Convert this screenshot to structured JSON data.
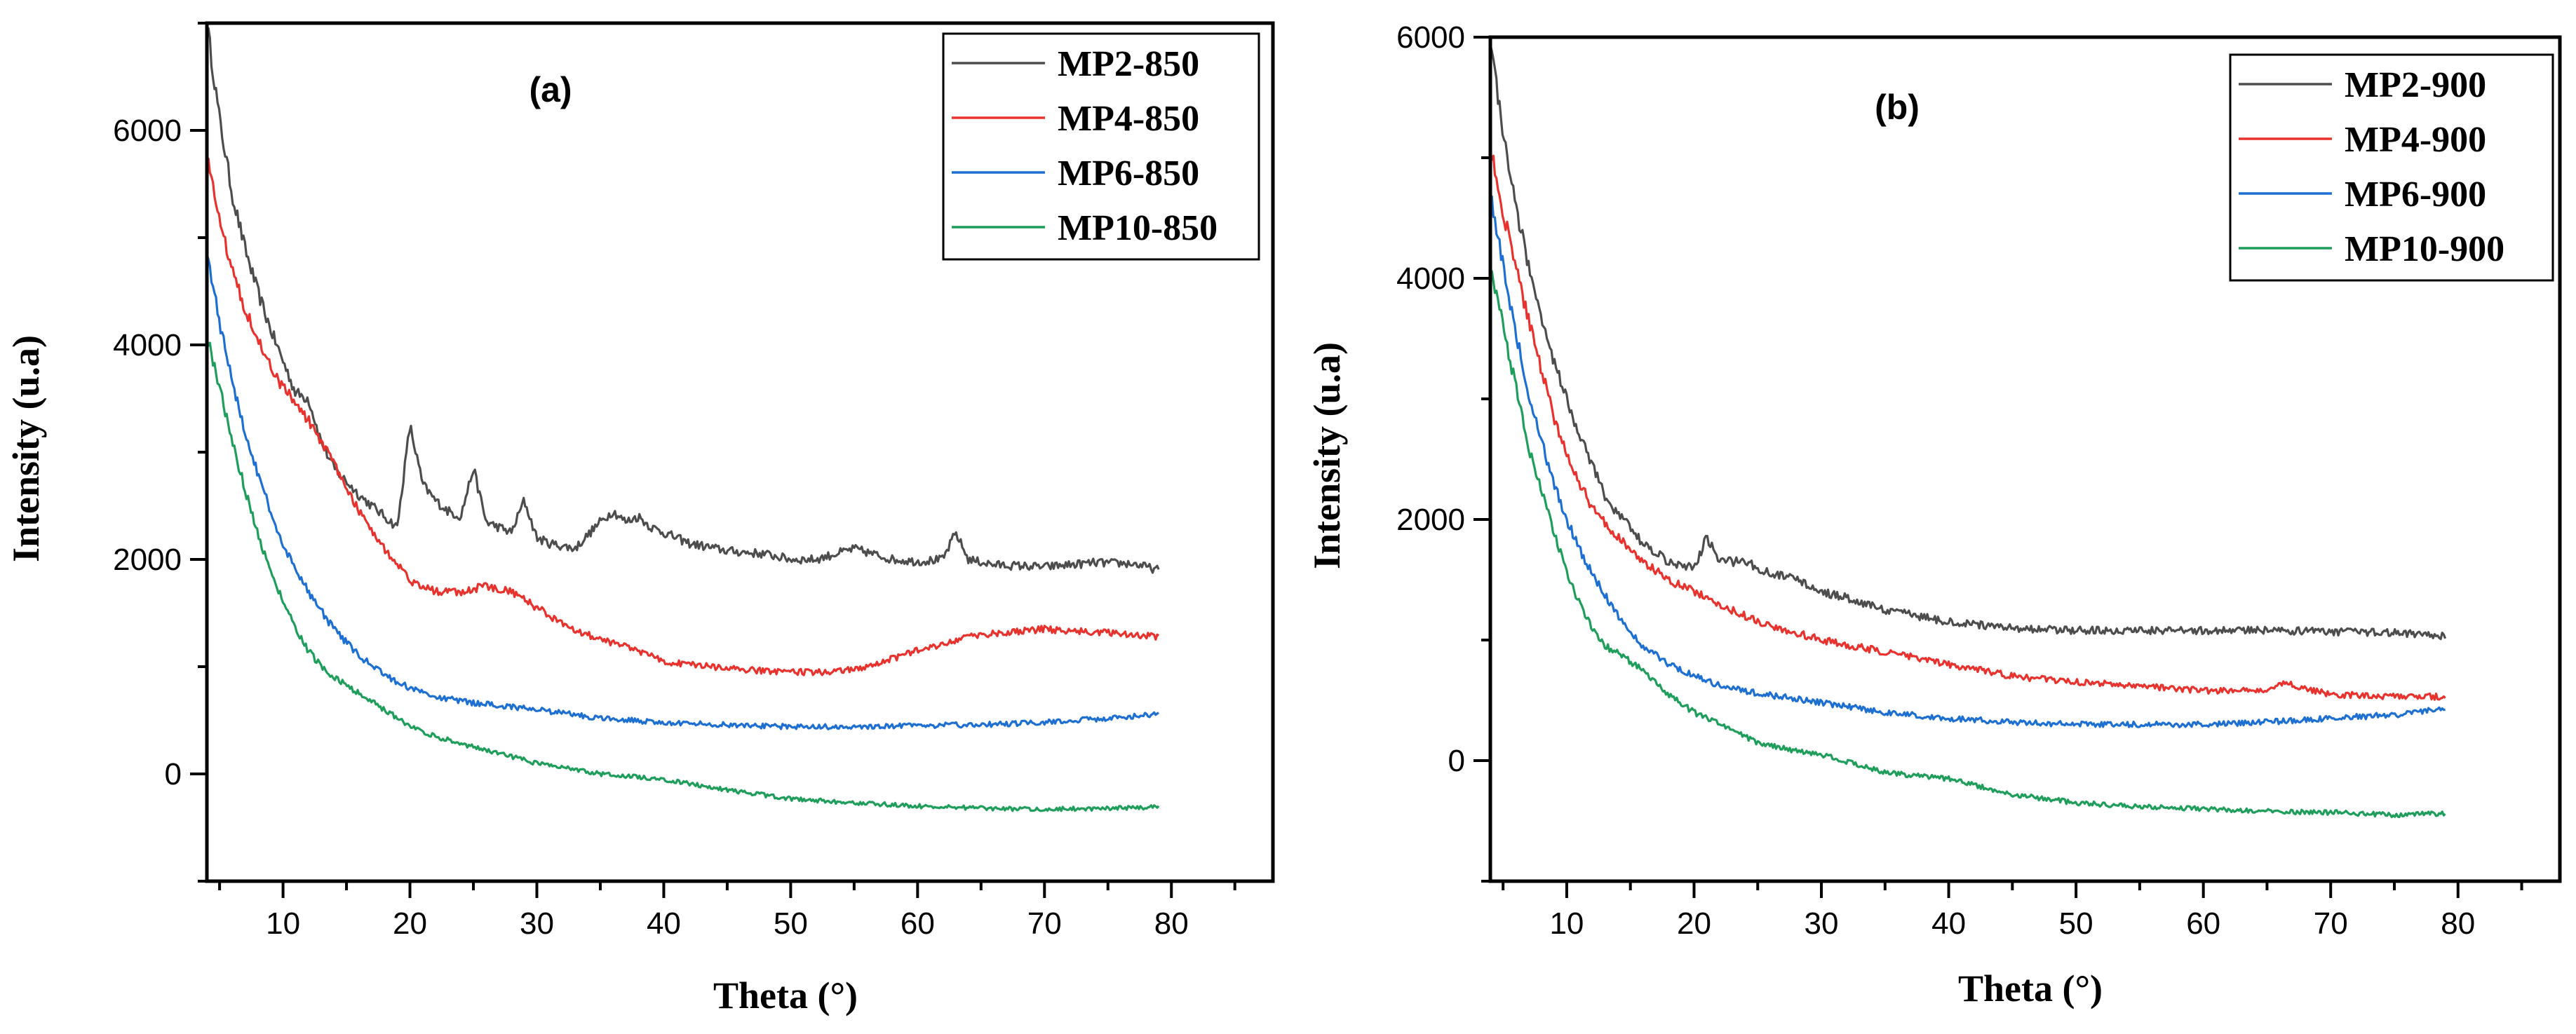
{
  "chart_data": [
    {
      "type": "line",
      "panel_label": "(a)",
      "xlabel": "Theta (°)",
      "ylabel": "Intensity (u.a)",
      "xlim": [
        4,
        88
      ],
      "ylim": [
        -1000,
        7000
      ],
      "xticks": [
        10,
        20,
        30,
        40,
        50,
        60,
        70,
        80
      ],
      "yticks": [
        0,
        2000,
        4000,
        6000
      ],
      "legend": "top-right",
      "series": [
        {
          "name": "MP2-850",
          "color": "#4d4d4d",
          "x": [
            4,
            5,
            6,
            7,
            8,
            9,
            10,
            11,
            12,
            13,
            14,
            16,
            18,
            19,
            20,
            21,
            22,
            23,
            24,
            25,
            26,
            27,
            28,
            29,
            30,
            31,
            33,
            35,
            36,
            37,
            38,
            39,
            40,
            42,
            45,
            48,
            50,
            52,
            55,
            58,
            60,
            62,
            63,
            64,
            66,
            70,
            74,
            77,
            79
          ],
          "y": [
            7000,
            6100,
            5400,
            4900,
            4500,
            4150,
            3850,
            3550,
            3500,
            3100,
            2850,
            2600,
            2400,
            2300,
            3250,
            2700,
            2550,
            2450,
            2400,
            2850,
            2350,
            2300,
            2250,
            2550,
            2200,
            2150,
            2100,
            2350,
            2450,
            2350,
            2400,
            2300,
            2250,
            2150,
            2080,
            2050,
            2000,
            2000,
            2100,
            2000,
            1980,
            2000,
            2250,
            2000,
            1950,
            1930,
            1970,
            1960,
            1900
          ]
        },
        {
          "name": "MP4-850",
          "color": "#e8322d",
          "x": [
            4,
            5,
            6,
            7,
            8,
            9,
            10,
            11,
            12,
            14,
            16,
            18,
            20,
            22,
            24,
            26,
            28,
            30,
            32,
            35,
            38,
            40,
            45,
            50,
            53,
            56,
            60,
            65,
            70,
            75,
            79
          ],
          "y": [
            5800,
            5150,
            4700,
            4350,
            4050,
            3800,
            3600,
            3450,
            3300,
            2900,
            2450,
            2100,
            1800,
            1700,
            1700,
            1750,
            1700,
            1550,
            1400,
            1250,
            1150,
            1050,
            980,
            950,
            950,
            1000,
            1150,
            1300,
            1350,
            1320,
            1280
          ]
        },
        {
          "name": "MP6-850",
          "color": "#1d6fd1",
          "x": [
            4,
            5,
            6,
            7,
            8,
            9,
            10,
            11,
            12,
            14,
            16,
            18,
            20,
            22,
            25,
            30,
            35,
            40,
            45,
            50,
            55,
            60,
            65,
            70,
            75,
            79
          ],
          "y": [
            4900,
            4200,
            3650,
            3200,
            2800,
            2450,
            2150,
            1900,
            1700,
            1350,
            1100,
            920,
            800,
            720,
            660,
            600,
            520,
            480,
            460,
            440,
            440,
            450,
            460,
            480,
            520,
            560
          ]
        },
        {
          "name": "MP10-850",
          "color": "#1e9e5a",
          "x": [
            4,
            5,
            6,
            7,
            8,
            9,
            10,
            11,
            12,
            13,
            14,
            16,
            18,
            20,
            22,
            25,
            30,
            35,
            40,
            45,
            50,
            55,
            60,
            65,
            70,
            75,
            79
          ],
          "y": [
            4100,
            3600,
            3100,
            2650,
            2250,
            1900,
            1600,
            1350,
            1150,
            1000,
            900,
            750,
            600,
            450,
            350,
            250,
            100,
            0,
            -50,
            -150,
            -230,
            -270,
            -300,
            -320,
            -330,
            -320,
            -310
          ]
        }
      ]
    },
    {
      "type": "line",
      "panel_label": "(b)",
      "xlabel": "Theta (°)",
      "ylabel": "Intensity (u.a)",
      "xlim": [
        4,
        88
      ],
      "ylim": [
        -1000,
        6000
      ],
      "xticks": [
        10,
        20,
        30,
        40,
        50,
        60,
        70,
        80
      ],
      "yticks": [
        0,
        2000,
        4000,
        6000
      ],
      "legend": "top-right",
      "series": [
        {
          "name": "MP2-900",
          "color": "#4d4d4d",
          "x": [
            4,
            5,
            6,
            7,
            8,
            9,
            10,
            11,
            12,
            13,
            14,
            16,
            18,
            20,
            21,
            22,
            24,
            26,
            28,
            30,
            32,
            35,
            40,
            45,
            50,
            55,
            60,
            65,
            70,
            75,
            79
          ],
          "y": [
            6000,
            5200,
            4600,
            4100,
            3700,
            3300,
            3000,
            2700,
            2450,
            2200,
            2050,
            1800,
            1650,
            1600,
            1850,
            1650,
            1650,
            1550,
            1500,
            1400,
            1350,
            1250,
            1150,
            1100,
            1080,
            1080,
            1080,
            1080,
            1070,
            1060,
            1030
          ]
        },
        {
          "name": "MP4-900",
          "color": "#e8322d",
          "x": [
            4,
            5,
            6,
            7,
            8,
            9,
            10,
            11,
            12,
            14,
            16,
            18,
            20,
            22,
            25,
            30,
            35,
            40,
            45,
            50,
            55,
            60,
            65,
            66,
            70,
            75,
            79
          ],
          "y": [
            5100,
            4550,
            4100,
            3650,
            3250,
            2850,
            2550,
            2300,
            2100,
            1850,
            1650,
            1500,
            1400,
            1300,
            1150,
            1000,
            900,
            800,
            700,
            650,
            620,
            580,
            580,
            650,
            550,
            530,
            530
          ]
        },
        {
          "name": "MP6-900",
          "color": "#1d6fd1",
          "x": [
            4,
            5,
            6,
            7,
            8,
            9,
            10,
            11,
            12,
            14,
            16,
            18,
            20,
            22,
            25,
            30,
            35,
            40,
            45,
            50,
            55,
            60,
            65,
            70,
            75,
            79
          ],
          "y": [
            4700,
            4100,
            3550,
            3050,
            2650,
            2300,
            2000,
            1750,
            1550,
            1200,
            950,
            800,
            700,
            620,
            560,
            480,
            400,
            350,
            320,
            300,
            300,
            300,
            320,
            350,
            380,
            430
          ]
        },
        {
          "name": "MP10-900",
          "color": "#1e9e5a",
          "x": [
            4,
            5,
            6,
            7,
            8,
            9,
            10,
            11,
            12,
            13,
            14,
            16,
            18,
            20,
            22,
            25,
            28,
            30,
            35,
            40,
            45,
            50,
            55,
            60,
            65,
            70,
            75,
            79
          ],
          "y": [
            4100,
            3600,
            3100,
            2600,
            2250,
            1900,
            1550,
            1300,
            1100,
            950,
            900,
            750,
            550,
            400,
            300,
            150,
            80,
            50,
            -100,
            -150,
            -280,
            -350,
            -380,
            -400,
            -420,
            -430,
            -450,
            -440
          ]
        }
      ]
    }
  ]
}
